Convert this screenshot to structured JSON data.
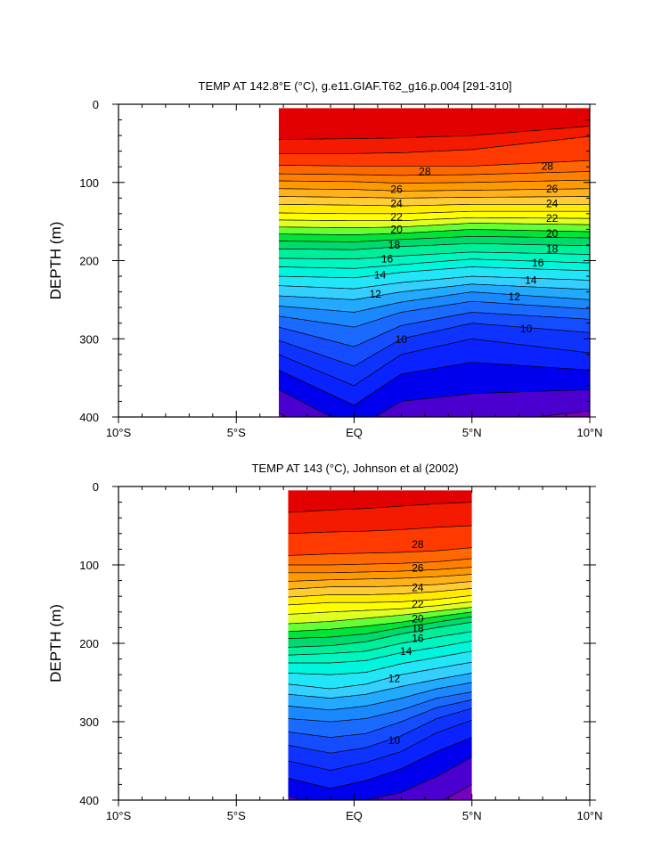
{
  "chart_data": [
    {
      "type": "contour",
      "title": "TEMP AT 142.8°E (°C), g.e11.GIAF.T62_g16.p.004 [291-310]",
      "ylabel": "DEPTH (m)",
      "xlim": [
        -10,
        10
      ],
      "ylim": [
        0,
        400
      ],
      "y_inverted": true,
      "xticks": [
        {
          "value": -10,
          "label": "10°S"
        },
        {
          "value": -5,
          "label": "5°S"
        },
        {
          "value": 0,
          "label": "EQ"
        },
        {
          "value": 5,
          "label": "5°N"
        },
        {
          "value": 10,
          "label": "10°N"
        }
      ],
      "yticks": [
        {
          "value": 0,
          "label": "0"
        },
        {
          "value": 100,
          "label": "100"
        },
        {
          "value": 200,
          "label": "200"
        },
        {
          "value": 300,
          "label": "300"
        },
        {
          "value": 400,
          "label": "400"
        }
      ],
      "data_extent": {
        "lat": [
          -3.2,
          10
        ],
        "depth": [
          5,
          400
        ]
      },
      "contour_interval": 1,
      "contour_sections": [
        {
          "lat": -3.2,
          "depths": [
            45,
            63,
            78,
            89,
            98,
            108,
            118,
            128,
            139,
            148,
            157,
            166,
            175,
            185,
            197,
            208,
            220,
            232,
            245,
            258,
            271,
            285,
            302,
            320,
            340,
            365,
            395
          ]
        },
        {
          "lat": 0,
          "depths": [
            44,
            63,
            79,
            90,
            99,
            109,
            119,
            129,
            140,
            149,
            158,
            167,
            176,
            186,
            198,
            210,
            222,
            236,
            250,
            266,
            285,
            310,
            335,
            360,
            385,
            415,
            445
          ]
        },
        {
          "lat": 2,
          "depths": [
            43,
            62,
            79,
            91,
            101,
            111,
            120,
            130,
            140,
            149,
            157,
            165,
            173,
            182,
            194,
            205,
            215,
            228,
            240,
            253,
            266,
            283,
            300,
            320,
            345,
            380,
            420
          ]
        },
        {
          "lat": 5,
          "depths": [
            40,
            58,
            79,
            90,
            100,
            110,
            119,
            128,
            137,
            145,
            152,
            160,
            169,
            178,
            189,
            198,
            208,
            220,
            230,
            240,
            252,
            266,
            280,
            300,
            330,
            370,
            410
          ]
        },
        {
          "lat": 10,
          "depths": [
            28,
            41,
            72,
            86,
            97,
            108,
            118,
            128,
            137,
            146,
            154,
            163,
            171,
            181,
            192,
            203,
            213,
            225,
            237,
            250,
            262,
            275,
            292,
            318,
            340,
            365,
            392
          ]
        }
      ],
      "isotherm_labels": [
        {
          "value": "28",
          "at": [
            [
              3.0,
              86
            ],
            [
              8.2,
              79
            ]
          ]
        },
        {
          "value": "26",
          "at": [
            [
              1.8,
              109
            ],
            [
              8.4,
              108
            ]
          ]
        },
        {
          "value": "24",
          "at": [
            [
              1.8,
              127
            ],
            [
              8.4,
              127
            ]
          ]
        },
        {
          "value": "22",
          "at": [
            [
              1.8,
              144
            ],
            [
              8.4,
              146
            ]
          ]
        },
        {
          "value": "20",
          "at": [
            [
              1.8,
              160
            ],
            [
              8.4,
              165
            ]
          ]
        },
        {
          "value": "18",
          "at": [
            [
              1.7,
              180
            ],
            [
              8.4,
              185
            ]
          ]
        },
        {
          "value": "16",
          "at": [
            [
              1.4,
              198
            ],
            [
              7.8,
              203
            ]
          ]
        },
        {
          "value": "14",
          "at": [
            [
              1.1,
              218
            ],
            [
              7.5,
              225
            ]
          ]
        },
        {
          "value": "12",
          "at": [
            [
              0.9,
              243
            ],
            [
              6.8,
              246
            ]
          ]
        },
        {
          "value": "10",
          "at": [
            [
              2.0,
              301
            ],
            [
              7.3,
              287
            ]
          ]
        }
      ]
    },
    {
      "type": "contour",
      "title": "TEMP AT 143 (°C), Johnson et al (2002)",
      "ylabel": "DEPTH (m)",
      "xlim": [
        -10,
        10
      ],
      "ylim": [
        0,
        400
      ],
      "y_inverted": true,
      "xticks": [
        {
          "value": -10,
          "label": "10°S"
        },
        {
          "value": -5,
          "label": "5°S"
        },
        {
          "value": 0,
          "label": "EQ"
        },
        {
          "value": 5,
          "label": "5°N"
        },
        {
          "value": 10,
          "label": "10°N"
        }
      ],
      "yticks": [
        {
          "value": 0,
          "label": "0"
        },
        {
          "value": 100,
          "label": "100"
        },
        {
          "value": 200,
          "label": "200"
        },
        {
          "value": 300,
          "label": "300"
        },
        {
          "value": 400,
          "label": "400"
        }
      ],
      "data_extent": {
        "lat": [
          -2.8,
          5
        ],
        "depth": [
          5,
          400
        ]
      },
      "contour_interval": 1,
      "contour_sections": [
        {
          "lat": -2.8,
          "depths": [
            33,
            60,
            88,
            100,
            110,
            121,
            131,
            141,
            151,
            163,
            175,
            185,
            194,
            205,
            215,
            225,
            238,
            252,
            265,
            280,
            296,
            313,
            330,
            350,
            372,
            395,
            430
          ]
        },
        {
          "lat": -1,
          "depths": [
            30,
            58,
            86,
            100,
            110,
            119,
            128,
            138,
            148,
            160,
            172,
            182,
            192,
            203,
            213,
            225,
            240,
            258,
            270,
            285,
            300,
            320,
            340,
            362,
            385,
            410,
            440
          ]
        },
        {
          "lat": 0.5,
          "depths": [
            28,
            57,
            85,
            99,
            109,
            118,
            128,
            138,
            148,
            158,
            168,
            178,
            188,
            198,
            210,
            222,
            237,
            252,
            265,
            280,
            296,
            315,
            333,
            352,
            375,
            400,
            430
          ]
        },
        {
          "lat": 2,
          "depths": [
            25,
            55,
            84,
            98,
            108,
            117,
            127,
            137,
            147,
            156,
            164,
            173,
            180,
            188,
            200,
            212,
            226,
            240,
            255,
            270,
            285,
            300,
            318,
            338,
            360,
            390,
            420
          ]
        },
        {
          "lat": 3.5,
          "depths": [
            22,
            52,
            82,
            96,
            106,
            115,
            125,
            134,
            144,
            152,
            159,
            166,
            173,
            180,
            192,
            205,
            218,
            232,
            246,
            258,
            270,
            282,
            296,
            314,
            338,
            370,
            405
          ]
        },
        {
          "lat": 5,
          "depths": [
            20,
            50,
            78,
            92,
            103,
            112,
            121,
            130,
            139,
            147,
            154,
            160,
            166,
            173,
            185,
            197,
            210,
            224,
            238,
            250,
            262,
            272,
            283,
            298,
            320,
            345,
            380
          ]
        }
      ],
      "isotherm_labels": [
        {
          "value": "28",
          "at": [
            [
              2.7,
              74
            ]
          ]
        },
        {
          "value": "26",
          "at": [
            [
              2.7,
              104
            ]
          ]
        },
        {
          "value": "24",
          "at": [
            [
              2.7,
              129
            ]
          ]
        },
        {
          "value": "22",
          "at": [
            [
              2.7,
              150
            ]
          ]
        },
        {
          "value": "20",
          "at": [
            [
              2.7,
              169
            ]
          ]
        },
        {
          "value": "18",
          "at": [
            [
              2.7,
              181
            ]
          ]
        },
        {
          "value": "16",
          "at": [
            [
              2.7,
              194
            ]
          ]
        },
        {
          "value": "14",
          "at": [
            [
              2.2,
              210
            ]
          ]
        },
        {
          "value": "12",
          "at": [
            [
              1.7,
              245
            ]
          ]
        },
        {
          "value": "10",
          "at": [
            [
              1.7,
              324
            ]
          ]
        }
      ]
    }
  ]
}
